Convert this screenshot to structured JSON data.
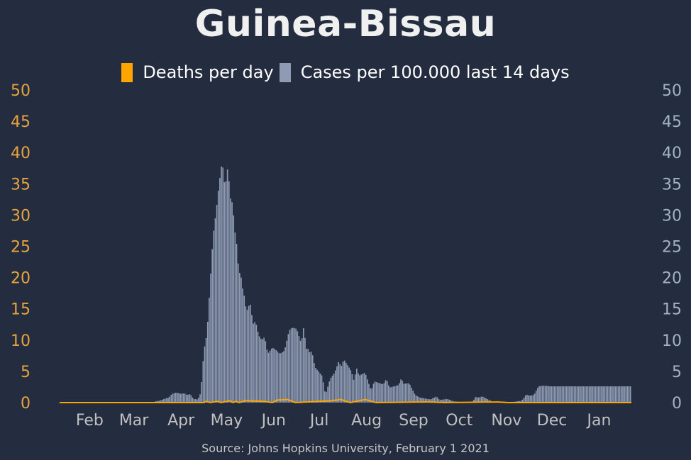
{
  "title": "Guinea-Bissau",
  "source": "Source: Johns Hopkins University, February 1 2021",
  "colors": {
    "background": "#232d3f",
    "deaths": "#ffa500",
    "cases": "#8e9bb3",
    "left_axis": "#e8a33d",
    "right_axis": "#a4b2c8",
    "x_axis": "#c0c0c0"
  },
  "legend": {
    "deaths_label": "Deaths per day",
    "cases_label": "Cases per 100.000 last 14 days"
  },
  "chart_data": {
    "type": "bar",
    "left_yaxis": {
      "ylim": [
        0,
        50
      ],
      "ticks": [
        "0",
        "5",
        "10",
        "15",
        "20",
        "25",
        "30",
        "35",
        "40",
        "45",
        "50"
      ]
    },
    "right_yaxis": {
      "ylim": [
        0,
        50
      ],
      "ticks": [
        "0",
        "5",
        "10",
        "15",
        "20",
        "25",
        "30",
        "35",
        "40",
        "45",
        "50"
      ]
    },
    "x_ticks": [
      "Feb",
      "Mar",
      "Apr",
      "May",
      "Jun",
      "Jul",
      "Aug",
      "Sep",
      "Oct",
      "Nov",
      "Dec",
      "Jan"
    ],
    "x_tick_dates": [
      "2020-02-01",
      "2020-03-01",
      "2020-04-01",
      "2020-05-01",
      "2020-06-01",
      "2020-07-01",
      "2020-08-01",
      "2020-09-01",
      "2020-10-01",
      "2020-11-01",
      "2020-12-01",
      "2021-01-01"
    ],
    "x_range": [
      "2020-01-22",
      "2021-02-01"
    ],
    "cases_series": {
      "name": "Cases per 100.000 last 14 days",
      "points": [
        [
          "2020-01-22",
          0
        ],
        [
          "2020-03-24",
          0
        ],
        [
          "2020-03-25",
          0.2
        ],
        [
          "2020-03-28",
          0.3
        ],
        [
          "2020-03-31",
          0.6
        ],
        [
          "2020-04-03",
          0.8
        ],
        [
          "2020-04-05",
          1.4
        ],
        [
          "2020-04-08",
          1.6
        ],
        [
          "2020-04-11",
          1.4
        ],
        [
          "2020-04-13",
          1.5
        ],
        [
          "2020-04-15",
          1.2
        ],
        [
          "2020-04-17",
          1.4
        ],
        [
          "2020-04-19",
          0.6
        ],
        [
          "2020-04-22",
          0.5
        ],
        [
          "2020-04-24",
          1.6
        ],
        [
          "2020-04-26",
          8.3
        ],
        [
          "2020-04-28",
          11
        ],
        [
          "2020-04-30",
          18.7
        ],
        [
          "2020-05-02",
          26.5
        ],
        [
          "2020-05-04",
          30.5
        ],
        [
          "2020-05-06",
          35
        ],
        [
          "2020-05-08",
          38.7
        ],
        [
          "2020-05-09",
          36.5
        ],
        [
          "2020-05-10",
          34
        ],
        [
          "2020-05-11",
          36.8
        ],
        [
          "2020-05-12",
          37.8
        ],
        [
          "2020-05-13",
          33
        ],
        [
          "2020-05-14",
          32.3
        ],
        [
          "2020-05-15",
          31.8
        ],
        [
          "2020-05-16",
          28.1
        ],
        [
          "2020-05-18",
          24.5
        ],
        [
          "2020-05-19",
          20
        ],
        [
          "2020-05-20",
          21.5
        ],
        [
          "2020-05-21",
          18.5
        ],
        [
          "2020-05-22",
          18
        ],
        [
          "2020-05-24",
          14.5
        ],
        [
          "2020-05-26",
          15.8
        ],
        [
          "2020-05-27",
          15.5
        ],
        [
          "2020-05-28",
          12.5
        ],
        [
          "2020-05-30",
          13
        ],
        [
          "2020-06-01",
          10.8
        ],
        [
          "2020-06-03",
          10
        ],
        [
          "2020-06-05",
          10.5
        ],
        [
          "2020-06-07",
          7.8
        ],
        [
          "2020-06-10",
          8.8
        ],
        [
          "2020-06-12",
          8.5
        ],
        [
          "2020-06-15",
          7.8
        ],
        [
          "2020-06-18",
          8.3
        ],
        [
          "2020-06-21",
          11.5
        ],
        [
          "2020-06-23",
          12
        ],
        [
          "2020-06-26",
          11.8
        ],
        [
          "2020-06-29",
          9.5
        ],
        [
          "2020-07-01",
          12.7
        ],
        [
          "2020-07-02",
          8
        ],
        [
          "2020-07-03",
          9.2
        ],
        [
          "2020-07-04",
          8
        ],
        [
          "2020-07-06",
          8.2
        ],
        [
          "2020-07-08",
          5.7
        ],
        [
          "2020-07-13",
          4.2
        ],
        [
          "2020-07-14",
          2.3
        ],
        [
          "2020-07-15",
          1.3
        ],
        [
          "2020-07-18",
          3.8
        ],
        [
          "2020-07-21",
          4.8
        ],
        [
          "2020-07-24",
          6.8
        ],
        [
          "2020-07-25",
          5.5
        ],
        [
          "2020-07-27",
          6.9
        ],
        [
          "2020-07-30",
          5.8
        ],
        [
          "2020-08-01",
          5
        ],
        [
          "2020-08-03",
          3.2
        ],
        [
          "2020-08-04",
          5.8
        ],
        [
          "2020-08-06",
          4.3
        ],
        [
          "2020-08-10",
          4.8
        ],
        [
          "2020-08-14",
          1.9
        ],
        [
          "2020-08-16",
          3.4
        ],
        [
          "2020-08-22",
          2.9
        ],
        [
          "2020-08-24",
          3.8
        ],
        [
          "2020-08-26",
          2.4
        ],
        [
          "2020-09-01",
          2.8
        ],
        [
          "2020-09-03",
          4
        ],
        [
          "2020-09-04",
          3
        ],
        [
          "2020-09-08",
          3.1
        ],
        [
          "2020-09-12",
          1.2
        ],
        [
          "2020-09-15",
          0.8
        ],
        [
          "2020-09-22",
          0.5
        ],
        [
          "2020-09-26",
          1
        ],
        [
          "2020-09-28",
          0.4
        ],
        [
          "2020-10-03",
          0.6
        ],
        [
          "2020-10-07",
          0.2
        ],
        [
          "2020-10-15",
          0
        ],
        [
          "2020-10-20",
          0
        ],
        [
          "2020-10-21",
          0.9
        ],
        [
          "2020-10-24",
          0.8
        ],
        [
          "2020-10-26",
          1
        ],
        [
          "2020-11-02",
          0.1
        ],
        [
          "2020-11-06",
          0.2
        ],
        [
          "2020-11-12",
          0
        ],
        [
          "2020-11-18",
          0.2
        ],
        [
          "2020-11-21",
          0.3
        ],
        [
          "2020-11-24",
          1.3
        ],
        [
          "2020-11-26",
          1.1
        ],
        [
          "2020-11-29",
          1.2
        ],
        [
          "2020-12-02",
          2.6
        ],
        [
          "2020-12-05",
          2.7
        ],
        [
          "2020-12-10",
          2.6
        ],
        [
          "2021-02-01",
          2.6
        ]
      ]
    },
    "deaths_series": {
      "name": "Deaths per day",
      "points": [
        [
          "2020-01-22",
          0
        ],
        [
          "2020-04-26",
          0
        ],
        [
          "2020-04-27",
          0.2
        ],
        [
          "2020-04-30",
          0
        ],
        [
          "2020-05-05",
          0.2
        ],
        [
          "2020-05-07",
          0
        ],
        [
          "2020-05-13",
          0.3
        ],
        [
          "2020-05-15",
          0
        ],
        [
          "2020-05-17",
          0.2
        ],
        [
          "2020-05-19",
          0
        ],
        [
          "2020-05-23",
          0.3
        ],
        [
          "2020-06-04",
          0.2
        ],
        [
          "2020-06-10",
          0
        ],
        [
          "2020-06-13",
          0.4
        ],
        [
          "2020-06-20",
          0.5
        ],
        [
          "2020-06-25",
          0
        ],
        [
          "2020-07-19",
          0.3
        ],
        [
          "2020-07-25",
          0.5
        ],
        [
          "2020-07-31",
          0
        ],
        [
          "2020-08-10",
          0.5
        ],
        [
          "2020-08-17",
          0
        ],
        [
          "2020-09-20",
          0.1
        ],
        [
          "2020-10-01",
          0
        ],
        [
          "2020-11-05",
          0.1
        ],
        [
          "2020-11-12",
          0
        ],
        [
          "2021-02-01",
          0
        ]
      ]
    }
  }
}
